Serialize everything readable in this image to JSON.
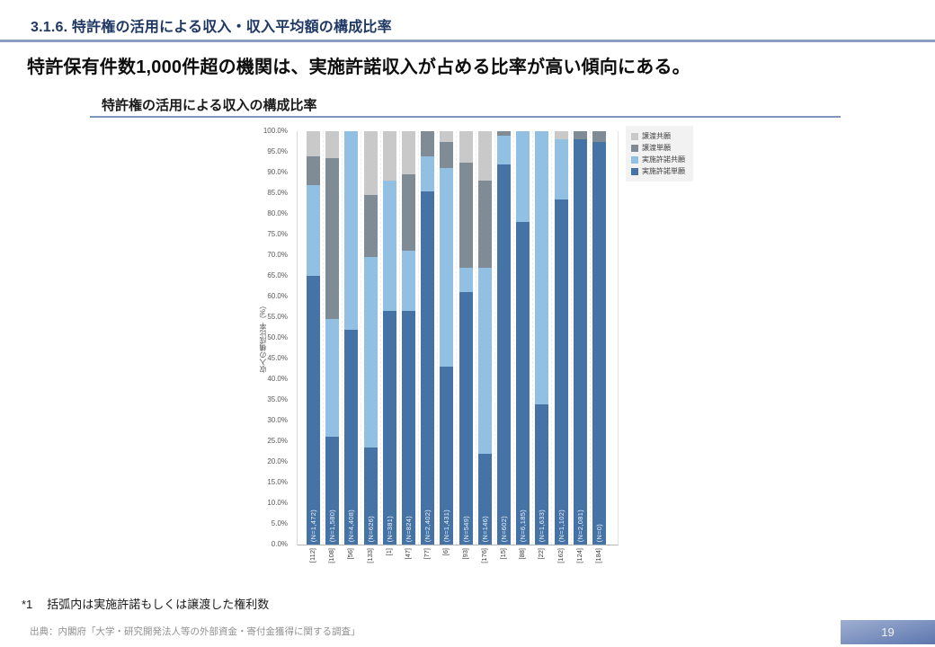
{
  "header": {
    "section_title": "3.1.6. 特許権の活用による収入・収入平均額の構成比率",
    "main_message": "特許保有件数1,000件超の機関は、実施許諾収入が占める比率が高い傾向にある。"
  },
  "chart": {
    "title": "特許権の活用による収入の構成比率"
  },
  "chart_data": {
    "type": "bar",
    "stacked": true,
    "percent_stacked": true,
    "title": "特許権の活用による収入の構成比率",
    "xlabel": "",
    "ylabel": "収入の構成比率（%）",
    "ylim": [
      0,
      100
    ],
    "ytick_step": 5,
    "ytick_suffix": "%",
    "grid": "faint vertical dashed",
    "legend_position": "top-right",
    "categories": [
      "[112]",
      "[108]",
      "[56]",
      "[133]",
      "[1]",
      "[47]",
      "[77]",
      "[6]",
      "[93]",
      "[176]",
      "[15]",
      "[88]",
      "[22]",
      "[162]",
      "[124]",
      "[184]"
    ],
    "bar_sublabels": [
      "(N=1,472)",
      "(N=1,580)",
      "(N=4,408)",
      "(N=626)",
      "(N=381)",
      "(N=824)",
      "(N=2,402)",
      "(N=1,431)",
      "(N=549)",
      "(N=146)",
      "(N=602)",
      "(N=6,185)",
      "(N=1,633)",
      "(N=1,102)",
      "(N=2,081)",
      "(N=0)"
    ],
    "series": [
      {
        "name": "実施許諾単願",
        "color": "#4573a5",
        "values": [
          65,
          26,
          52,
          23.5,
          56.5,
          56.5,
          85.5,
          43,
          61,
          22,
          92,
          78,
          34,
          83.5,
          98,
          97.5
        ]
      },
      {
        "name": "実施許諾共願",
        "color": "#92c0e2",
        "values": [
          22,
          28.5,
          48,
          46,
          31.5,
          14.5,
          8.5,
          48,
          6,
          45,
          7,
          22,
          66,
          14.5,
          0,
          0
        ]
      },
      {
        "name": "譲渡単願",
        "color": "#7f8b95",
        "values": [
          7,
          39,
          0,
          15,
          0,
          18.5,
          6,
          6.5,
          25.5,
          21,
          1,
          0,
          0,
          0,
          2,
          2.5
        ]
      },
      {
        "name": "譲渡共願",
        "color": "#c9c9c9",
        "values": [
          6,
          6.5,
          0,
          15.5,
          12,
          10.5,
          0,
          2.5,
          7.5,
          12,
          0,
          0,
          0,
          2,
          0,
          0
        ]
      }
    ],
    "legend_order": [
      {
        "label": "譲渡共願",
        "color": "#c9c9c9"
      },
      {
        "label": "譲渡単願",
        "color": "#7f8b95"
      },
      {
        "label": "実施許諾共願",
        "color": "#92c0e2"
      },
      {
        "label": "実施許諾単願",
        "color": "#4573a5"
      }
    ]
  },
  "footnotes": {
    "note_mark": "*1",
    "note": "括弧内は実施許諾もしくは譲渡した権利数",
    "source": "出典：内閣府「大学・研究開発法人等の外部資金・寄付金獲得に関する調査」"
  },
  "page": {
    "number": "19"
  }
}
